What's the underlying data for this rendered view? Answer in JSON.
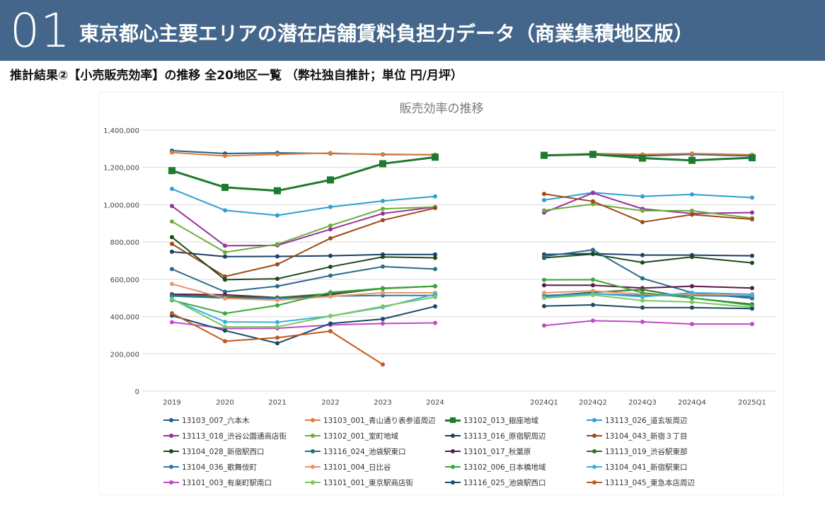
{
  "header": {
    "slide_number": "01",
    "title": "東京都心主要エリアの潜在店舗賃料負担力データ（商業集積地区版）",
    "background_color": "#44668a"
  },
  "subtitle": "推計結果②【小売販売効率】の推移 全20地区一覧 （弊社独自推計；単位 円/月坪）",
  "chart_data": {
    "type": "line",
    "title": "販売効率の推移",
    "xlabel": "",
    "ylabel": "",
    "ylim": [
      0,
      1400000
    ],
    "yticks": [
      "0",
      "200,000",
      "400,000",
      "600,000",
      "800,000",
      "1,000,000",
      "1,200,000",
      "1,400,000"
    ],
    "grid": true,
    "legend_position": "bottom",
    "groups": [
      {
        "name": "annual",
        "categories": [
          "2019",
          "2020",
          "2021",
          "2022",
          "2023",
          "2024"
        ]
      },
      {
        "name": "quarterly",
        "categories": [
          "2024Q1",
          "2024Q2",
          "2024Q3",
          "2024Q4",
          "2025Q1"
        ]
      }
    ],
    "series": [
      {
        "name": "13103_007_六本木",
        "color": "#1f5f8b",
        "annual": [
          1290000,
          1275000,
          1278000,
          1275000,
          1270000,
          1268000
        ],
        "quarterly": [
          1262000,
          1272000,
          1262000,
          1270000,
          1262000
        ]
      },
      {
        "name": "13103_001_青山通り表参道周辺",
        "color": "#e07b39",
        "annual": [
          1280000,
          1262000,
          1270000,
          1277000,
          1268000,
          1268000
        ],
        "quarterly": [
          1265000,
          1275000,
          1270000,
          1275000,
          1268000
        ]
      },
      {
        "name": "13102_013_銀座地域",
        "color": "#1e7a2c",
        "marker": "square",
        "annual": [
          1183000,
          1093000,
          1075000,
          1133000,
          1220000,
          1255000
        ],
        "quarterly": [
          1265000,
          1270000,
          1250000,
          1238000,
          1252000
        ]
      },
      {
        "name": "13113_026_道玄坂周辺",
        "color": "#2e9fd1",
        "annual": [
          1085000,
          970000,
          943000,
          988000,
          1020000,
          1045000
        ],
        "quarterly": [
          1025000,
          1065000,
          1045000,
          1055000,
          1038000
        ]
      },
      {
        "name": "13113_018_渋谷公園通商店街",
        "color": "#9b2fa0",
        "annual": [
          993000,
          780000,
          782000,
          868000,
          953000,
          988000
        ],
        "quarterly": [
          958000,
          1063000,
          978000,
          953000,
          958000
        ]
      },
      {
        "name": "13102_001_室町地域",
        "color": "#6aaf3c",
        "annual": [
          910000,
          745000,
          788000,
          888000,
          978000,
          988000
        ],
        "quarterly": [
          970000,
          1003000,
          968000,
          968000,
          928000
        ]
      },
      {
        "name": "13113_016_原宿駅周辺",
        "color": "#1a3f66",
        "annual": [
          748000,
          722000,
          723000,
          726000,
          733000,
          733000
        ],
        "quarterly": [
          733000,
          738000,
          730000,
          730000,
          726000
        ]
      },
      {
        "name": "13104_043_新宿３丁目",
        "color": "#9c4a16",
        "annual": [
          790000,
          615000,
          680000,
          820000,
          917000,
          982000
        ],
        "quarterly": [
          1058000,
          1018000,
          907000,
          947000,
          922000
        ]
      },
      {
        "name": "13104_028_新宿駅西口",
        "color": "#1c4a1c",
        "annual": [
          826000,
          598000,
          603000,
          667000,
          720000,
          715000
        ],
        "quarterly": [
          715000,
          735000,
          690000,
          720000,
          688000
        ]
      },
      {
        "name": "13116_024_池袋駅東口",
        "color": "#2a6a8a",
        "annual": [
          655000,
          533000,
          563000,
          620000,
          668000,
          655000
        ],
        "quarterly": [
          723000,
          758000,
          605000,
          528000,
          498000
        ]
      },
      {
        "name": "13101_017_秋葉原",
        "color": "#5a1a4a",
        "annual": [
          520000,
          517000,
          502000,
          518000,
          552000,
          563000
        ],
        "quarterly": [
          568000,
          568000,
          553000,
          563000,
          553000
        ]
      },
      {
        "name": "13113_019_渋谷駅東部",
        "color": "#3a6a2a",
        "annual": [
          515000,
          507000,
          502000,
          523000,
          550000,
          563000
        ],
        "quarterly": [
          510000,
          530000,
          545000,
          500000,
          466000
        ]
      },
      {
        "name": "13104_036_歌舞伎町",
        "color": "#2a7aaa",
        "annual": [
          510000,
          500000,
          497000,
          510000,
          513000,
          513000
        ],
        "quarterly": [
          513000,
          523000,
          513000,
          513000,
          508000
        ]
      },
      {
        "name": "13101_004_日比谷",
        "color": "#e8956a",
        "annual": [
          575000,
          498000,
          488000,
          508000,
          528000,
          528000
        ],
        "quarterly": [
          528000,
          538000,
          520000,
          518000,
          516000
        ]
      },
      {
        "name": "13102_006_日本橋地域",
        "color": "#38a83a",
        "annual": [
          488000,
          417000,
          460000,
          530000,
          552000,
          563000
        ],
        "quarterly": [
          597000,
          598000,
          528000,
          500000,
          460000
        ]
      },
      {
        "name": "13104_041_新宿駅東口",
        "color": "#3ab0e0",
        "annual": [
          493000,
          372000,
          370000,
          403000,
          450000,
          520000
        ],
        "quarterly": [
          503000,
          523000,
          506000,
          528000,
          520000
        ]
      },
      {
        "name": "13101_003_有楽町駅南口",
        "color": "#c04ac8",
        "annual": [
          370000,
          336000,
          337000,
          355000,
          363000,
          366000
        ],
        "quarterly": [
          352000,
          378000,
          372000,
          360000,
          360000
        ]
      },
      {
        "name": "13101_001_東京駅商店街",
        "color": "#7ac860",
        "annual": [
          495000,
          345000,
          345000,
          403000,
          455000,
          505000
        ],
        "quarterly": [
          500000,
          516000,
          486000,
          478000,
          450000
        ]
      },
      {
        "name": "13116_025_池袋駅西口",
        "color": "#1a4a6a",
        "annual": [
          405000,
          325000,
          257000,
          363000,
          387000,
          455000
        ],
        "quarterly": [
          456000,
          463000,
          448000,
          448000,
          443000
        ]
      },
      {
        "name": "13113_045_東急本店周辺",
        "color": "#c05a1a",
        "annual": [
          418000,
          268000,
          287000,
          322000,
          143000,
          null
        ],
        "quarterly": [
          null,
          null,
          null,
          null,
          null
        ]
      }
    ]
  }
}
